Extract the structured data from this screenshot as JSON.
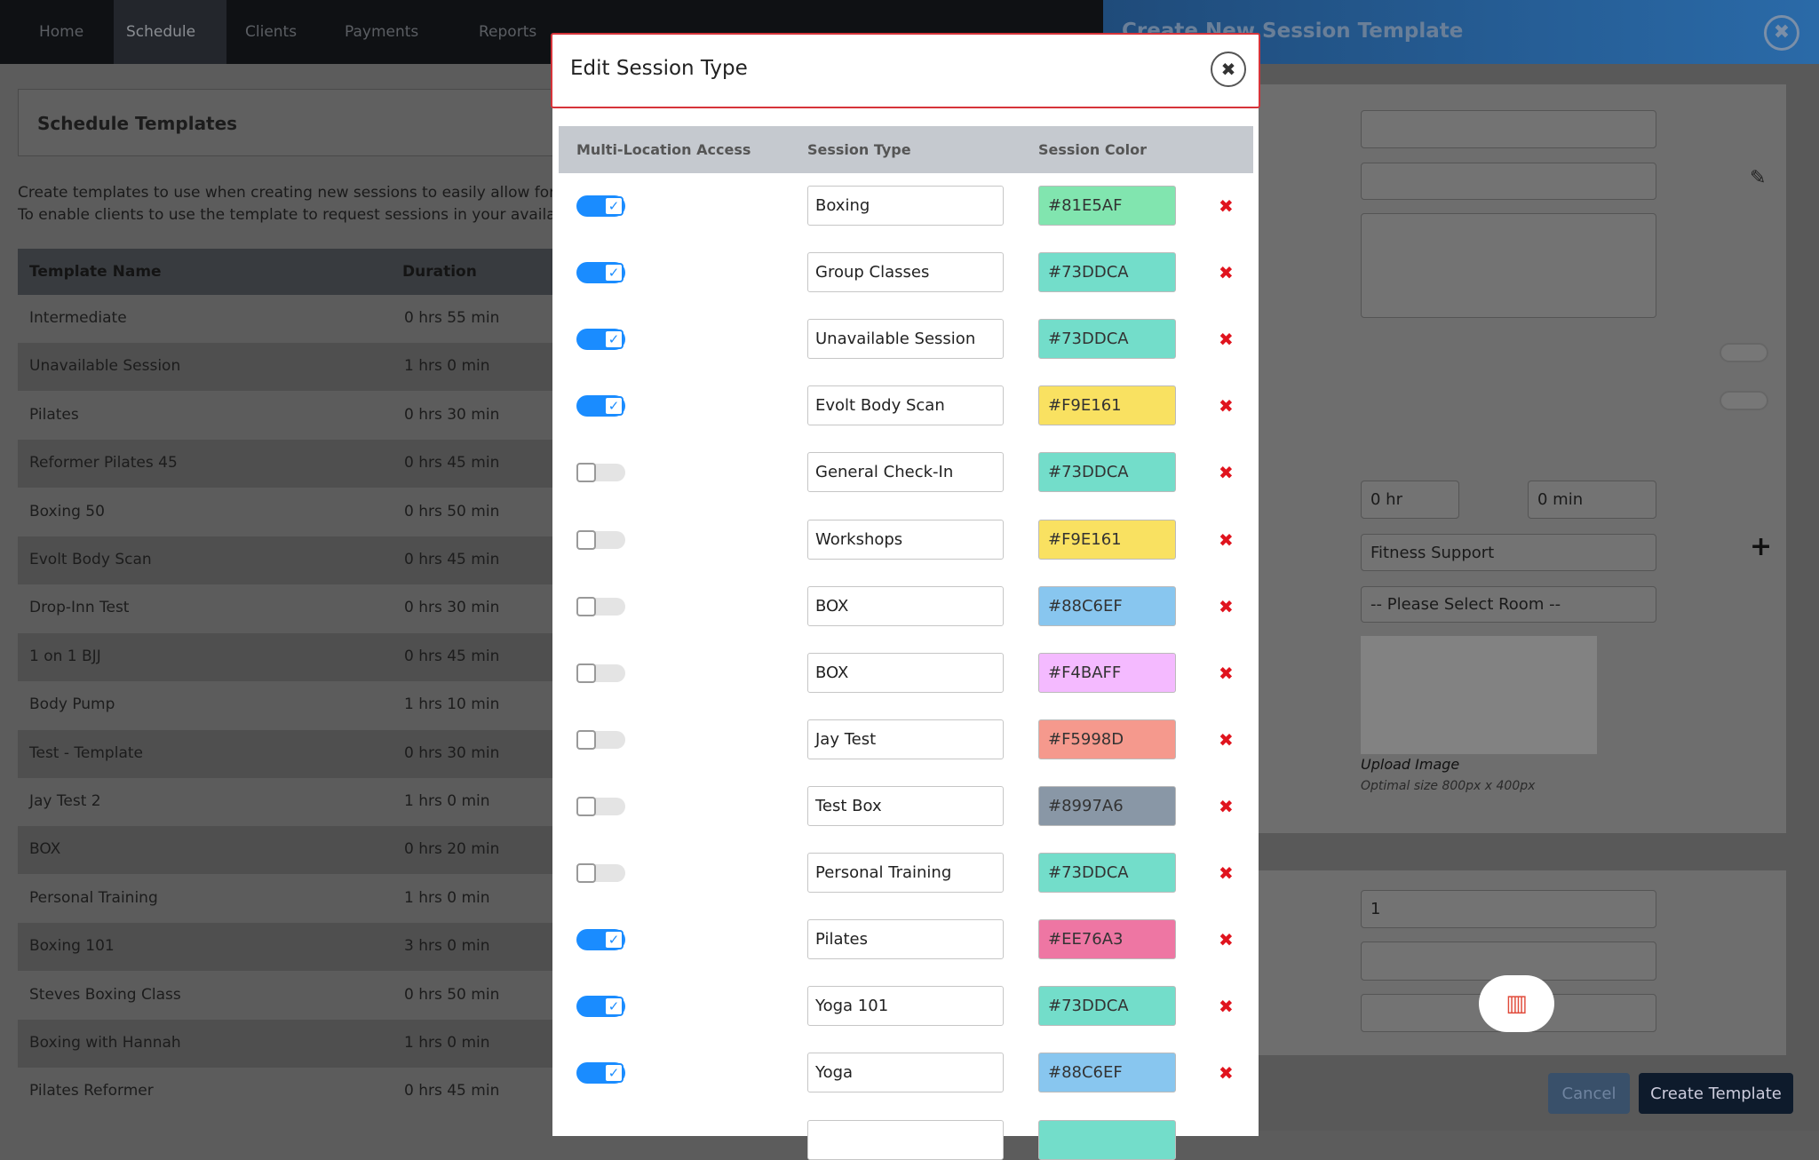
{
  "nav": {
    "items": [
      "Home",
      "Schedule",
      "Clients",
      "Payments",
      "Reports"
    ]
  },
  "templates": {
    "title": "Schedule Templates",
    "description": [
      "Create templates to use when creating new sessions to easily allow for quick cor",
      "To enable clients to use the template to request sessions in your available time sl"
    ],
    "columns": [
      "Template Name",
      "Duration"
    ],
    "rows": [
      [
        "Intermediate",
        "0 hrs 55 min"
      ],
      [
        "Unavailable Session",
        "1 hrs 0 min"
      ],
      [
        "Pilates",
        "0 hrs 30 min"
      ],
      [
        "Reformer Pilates 45",
        "0 hrs 45 min"
      ],
      [
        "Boxing 50",
        "0 hrs 50 min"
      ],
      [
        "Evolt Body Scan",
        "0 hrs 45 min"
      ],
      [
        "Drop-Inn Test",
        "0 hrs 30 min"
      ],
      [
        "1 on 1 BJJ",
        "0 hrs 45 min"
      ],
      [
        "Body Pump",
        "1 hrs 10 min"
      ],
      [
        "Test - Template",
        "0 hrs 30 min"
      ],
      [
        "Jay Test 2",
        "1 hrs 0 min"
      ],
      [
        "BOX",
        "0 hrs 20 min"
      ],
      [
        "Personal Training",
        "1 hrs 0 min"
      ],
      [
        "Boxing 101",
        "3 hrs 0 min"
      ],
      [
        "Steves Boxing Class",
        "0 hrs 50 min"
      ],
      [
        "Boxing with Hannah",
        "1 hrs 0 min"
      ],
      [
        "Pilates Reformer",
        "0 hrs 45 min"
      ]
    ]
  },
  "side_panel": {
    "title": "Create New Session Template",
    "hours": "0 hr",
    "minutes": "0 min",
    "category": "Fitness Support",
    "room": "-- Please Select Room --",
    "upload": "Upload Image",
    "upload_hint": "Optimal size 800px x 400px",
    "quantity": "1",
    "cancel": "Cancel",
    "create": "Create Template"
  },
  "modal": {
    "title": "Edit Session Type",
    "columns": [
      "Multi-Location Access",
      "Session Type",
      "Session Color"
    ],
    "rows": [
      {
        "multi_location": true,
        "name": "Boxing",
        "color": "#81E5AF"
      },
      {
        "multi_location": true,
        "name": "Group Classes",
        "color": "#73DDCA"
      },
      {
        "multi_location": true,
        "name": "Unavailable Session",
        "color": "#73DDCA"
      },
      {
        "multi_location": true,
        "name": "Evolt Body Scan",
        "color": "#F9E161"
      },
      {
        "multi_location": false,
        "name": "General Check-In",
        "color": "#73DDCA"
      },
      {
        "multi_location": false,
        "name": "Workshops",
        "color": "#F9E161"
      },
      {
        "multi_location": false,
        "name": "BOX",
        "color": "#88C6EF"
      },
      {
        "multi_location": false,
        "name": "BOX",
        "color": "#F4BAFF"
      },
      {
        "multi_location": false,
        "name": "Jay Test",
        "color": "#F5998D"
      },
      {
        "multi_location": false,
        "name": "Test Box",
        "color": "#8997A6"
      },
      {
        "multi_location": false,
        "name": "Personal Training",
        "color": "#73DDCA"
      },
      {
        "multi_location": true,
        "name": "Pilates",
        "color": "#EE76A3"
      },
      {
        "multi_location": true,
        "name": "Yoga 101",
        "color": "#73DDCA"
      },
      {
        "multi_location": true,
        "name": "Yoga",
        "color": "#88C6EF"
      }
    ]
  }
}
